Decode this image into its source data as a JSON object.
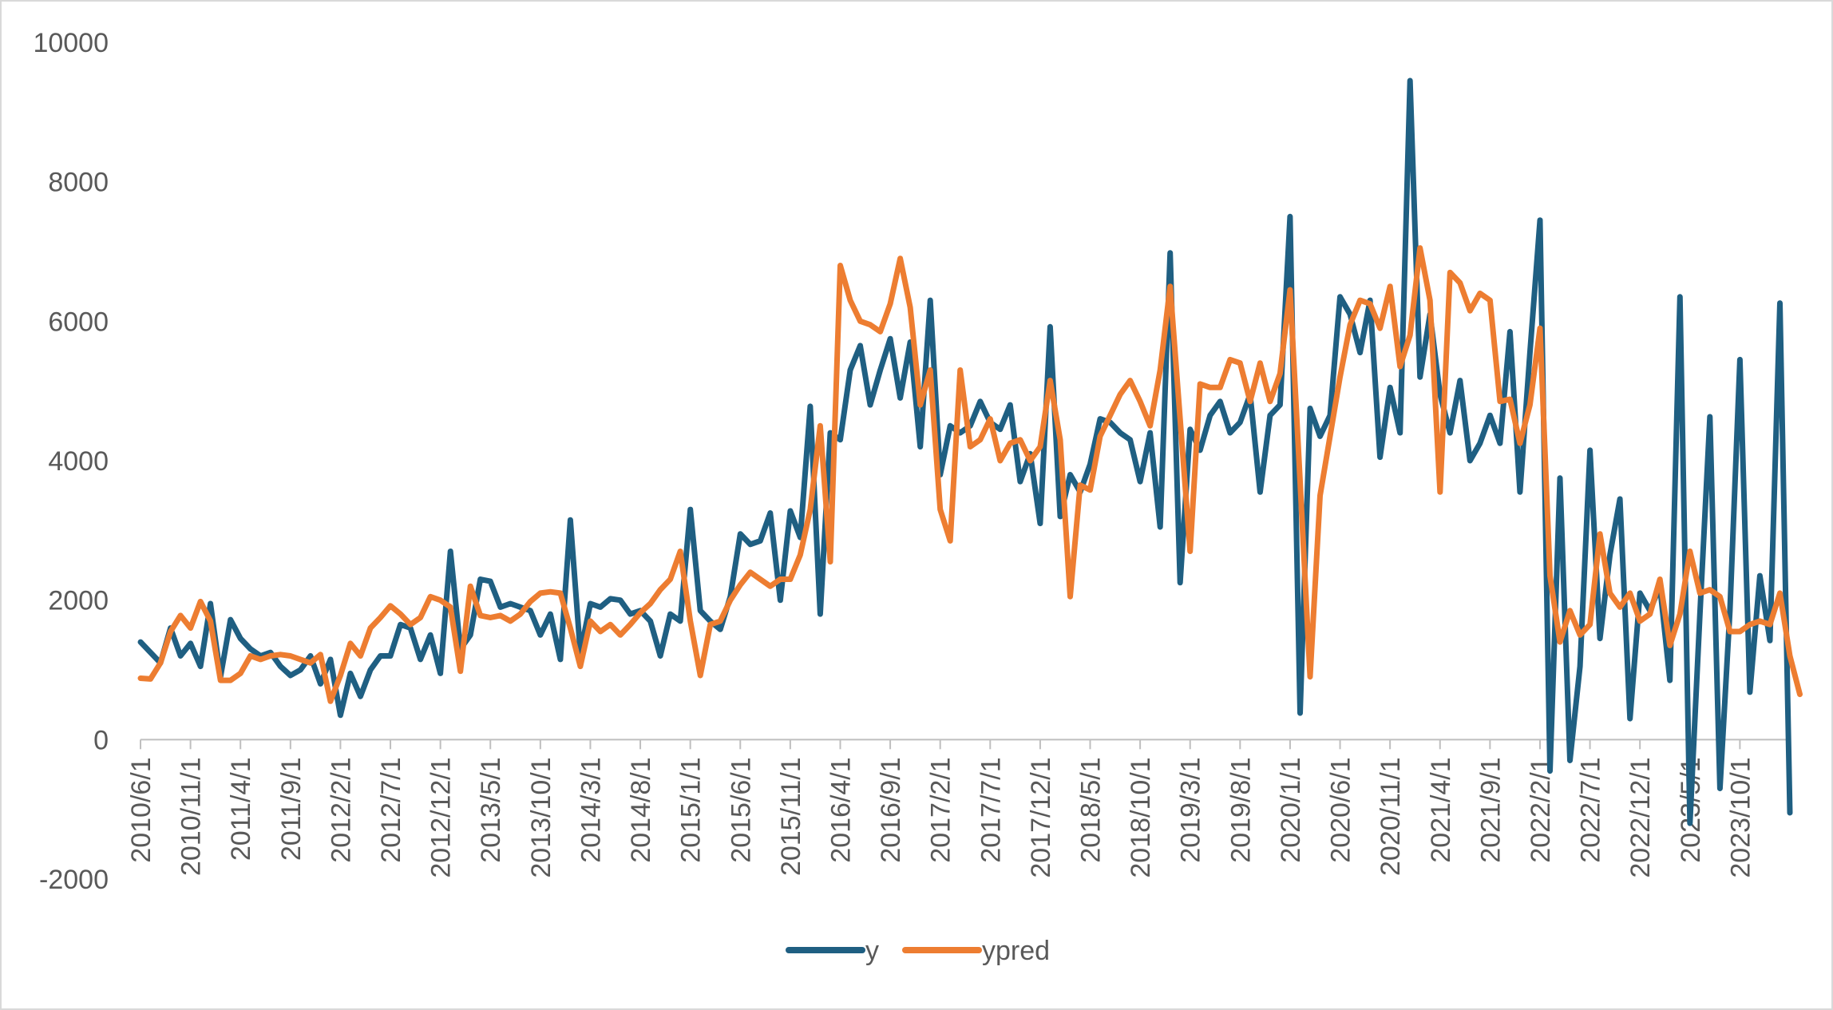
{
  "chart_data": {
    "type": "line",
    "ylim": [
      -2000,
      10000
    ],
    "yticks": [
      10000,
      8000,
      6000,
      4000,
      2000,
      0,
      -2000
    ],
    "x_tick_labels": [
      "2010/6/1",
      "2010/11/1",
      "2011/4/1",
      "2011/9/1",
      "2012/2/1",
      "2012/7/1",
      "2012/12/1",
      "2013/5/1",
      "2013/10/1",
      "2014/3/1",
      "2014/8/1",
      "2015/1/1",
      "2015/6/1",
      "2015/11/1",
      "2016/4/1",
      "2016/9/1",
      "2017/2/1",
      "2017/7/1",
      "2017/12/1",
      "2018/5/1",
      "2018/10/1",
      "2019/3/1",
      "2019/8/1",
      "2020/1/1",
      "2020/6/1",
      "2020/11/1",
      "2021/4/1",
      "2021/9/1",
      "2022/2/1",
      "2022/7/1",
      "2022/12/1",
      "2023/5/1",
      "2023/10/1"
    ],
    "grid": false,
    "legend_position": "bottom",
    "series": [
      {
        "name": "y",
        "color": "#1f5f82",
        "values": [
          1400,
          1250,
          1100,
          1600,
          1200,
          1380,
          1050,
          1950,
          900,
          1720,
          1450,
          1300,
          1200,
          1250,
          1050,
          920,
          1000,
          1200,
          800,
          1150,
          350,
          950,
          620,
          1000,
          1200,
          1200,
          1650,
          1600,
          1150,
          1500,
          950,
          2700,
          1300,
          1500,
          2300,
          2270,
          1900,
          1950,
          1900,
          1850,
          1500,
          1800,
          1150,
          3150,
          1250,
          1950,
          1900,
          2020,
          2000,
          1800,
          1850,
          1700,
          1200,
          1800,
          1700,
          3300,
          1850,
          1700,
          1580,
          2050,
          2950,
          2800,
          2850,
          3250,
          2000,
          3280,
          2900,
          4780,
          1800,
          4400,
          4300,
          5300,
          5650,
          4800,
          5300,
          5750,
          4900,
          5700,
          4200,
          6300,
          3800,
          4500,
          4400,
          4500,
          4850,
          4550,
          4450,
          4800,
          3700,
          4100,
          3100,
          5920,
          3200,
          3800,
          3550,
          3950,
          4600,
          4550,
          4400,
          4300,
          3700,
          4400,
          3050,
          6980,
          2250,
          4450,
          4150,
          4650,
          4850,
          4400,
          4550,
          4950,
          3550,
          4650,
          4800,
          7500,
          380,
          4750,
          4350,
          4650,
          6350,
          6100,
          5550,
          6300,
          4050,
          5050,
          4400,
          9450,
          5200,
          6100,
          4950,
          4400,
          5150,
          4000,
          4250,
          4650,
          4250,
          5850,
          3550,
          5550,
          7450,
          -450,
          3750,
          -300,
          1050,
          4150,
          1450,
          2650,
          3450,
          300,
          2100,
          1850,
          2200,
          850,
          6350,
          -1200,
          1800,
          4630,
          -700,
          1850,
          5450,
          680,
          2350,
          1420,
          6260,
          -1050
        ]
      },
      {
        "name": "ypred",
        "color": "#ed7d31",
        "values": [
          880,
          870,
          1100,
          1550,
          1780,
          1600,
          1980,
          1700,
          850,
          850,
          950,
          1200,
          1150,
          1200,
          1220,
          1200,
          1150,
          1100,
          1220,
          550,
          920,
          1380,
          1200,
          1600,
          1750,
          1920,
          1800,
          1650,
          1750,
          2050,
          2000,
          1900,
          980,
          2200,
          1780,
          1750,
          1780,
          1700,
          1800,
          1980,
          2100,
          2120,
          2100,
          1600,
          1050,
          1700,
          1550,
          1650,
          1500,
          1650,
          1820,
          1950,
          2150,
          2300,
          2700,
          1700,
          920,
          1650,
          1700,
          2000,
          2220,
          2400,
          2300,
          2200,
          2300,
          2300,
          2650,
          3300,
          4500,
          2550,
          6800,
          6300,
          6000,
          5950,
          5850,
          6250,
          6900,
          6200,
          4800,
          5300,
          3300,
          2850,
          5300,
          4200,
          4300,
          4600,
          4000,
          4250,
          4300,
          4000,
          4200,
          5150,
          4300,
          2050,
          3650,
          3580,
          4350,
          4650,
          4950,
          5150,
          4850,
          4500,
          5300,
          6500,
          4600,
          2700,
          5100,
          5050,
          5050,
          5450,
          5400,
          4850,
          5400,
          4850,
          5250,
          6450,
          3700,
          900,
          3500,
          4350,
          5200,
          5950,
          6300,
          6250,
          5900,
          6500,
          5350,
          5800,
          7050,
          6300,
          3550,
          6700,
          6550,
          6150,
          6400,
          6300,
          4850,
          4880,
          4250,
          4800,
          5900,
          2350,
          1400,
          1850,
          1500,
          1650,
          2950,
          2100,
          1900,
          2100,
          1700,
          1800,
          2300,
          1350,
          1800,
          2700,
          2100,
          2150,
          2050,
          1550,
          1550,
          1650,
          1700,
          1650,
          2100,
          1200,
          650
        ]
      }
    ]
  }
}
